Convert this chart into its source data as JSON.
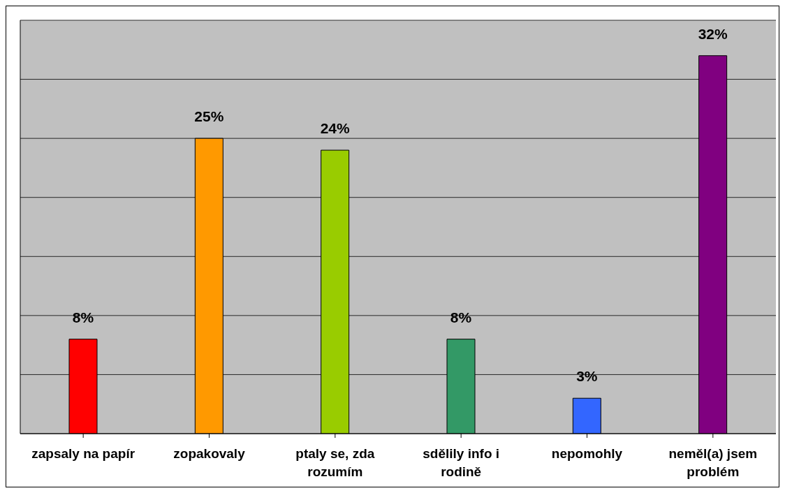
{
  "chart_data": {
    "type": "bar",
    "categories": [
      "zapsaly na papír",
      "zopakovaly",
      "ptaly se, zda rozumím",
      "sdělily info i rodině",
      "nepomohly",
      "neměl(a) jsem problém"
    ],
    "values": [
      8,
      25,
      24,
      8,
      3,
      32
    ],
    "colors": [
      "#ff0000",
      "#ff9900",
      "#99cc00",
      "#339966",
      "#3366ff",
      "#800080"
    ],
    "value_labels": [
      "8%",
      "25%",
      "24%",
      "8%",
      "3%",
      "32%"
    ],
    "ylim": [
      0,
      35
    ],
    "yticks": [
      {
        "value": 0,
        "label": null
      },
      {
        "value": 5,
        "label": null
      },
      {
        "value": 10,
        "label": null
      },
      {
        "value": 15,
        "label": null
      },
      {
        "value": 20,
        "label": null
      },
      {
        "value": 25,
        "label": null
      },
      {
        "value": 30,
        "label": null
      },
      {
        "value": 35,
        "label": null
      }
    ],
    "tick_labels": "x",
    "grid": "y",
    "legend": false
  }
}
